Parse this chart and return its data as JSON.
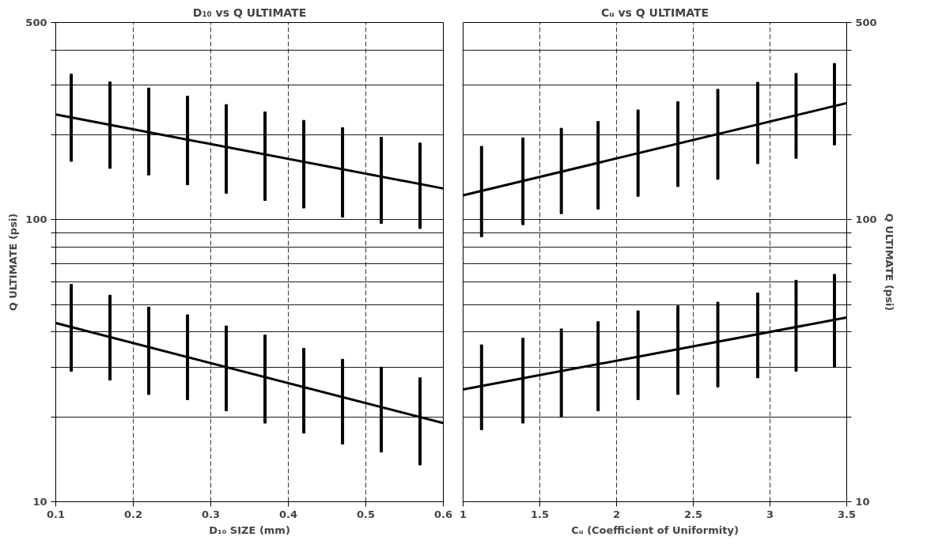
{
  "chart_data": [
    {
      "type": "bar",
      "title": "D₁₀ vs Q ULTIMATE",
      "xlabel": "D₁₀ SIZE (mm)",
      "ylabel": "Q ULTIMATE (psi)",
      "log": "y",
      "grid": true,
      "xlim": [
        0.1,
        0.6
      ],
      "xticks": [
        0.1,
        0.2,
        0.3,
        0.4,
        0.5,
        0.6
      ],
      "ylim": [
        10,
        500
      ],
      "yticks": [
        10,
        {
          "value": 20,
          "label": null
        },
        {
          "value": 30,
          "label": null
        },
        {
          "value": 40,
          "label": null
        },
        {
          "value": 50,
          "label": null
        },
        {
          "value": 60,
          "label": null
        },
        {
          "value": 70,
          "label": null
        },
        {
          "value": 80,
          "label": null
        },
        {
          "value": 90,
          "label": null
        },
        100,
        {
          "value": 200,
          "label": null
        },
        {
          "value": 300,
          "label": null
        },
        {
          "value": 400,
          "label": null
        },
        500
      ],
      "series": [
        {
          "color": "#000000",
          "x": [
            0.12,
            0.17,
            0.22,
            0.27,
            0.32,
            0.37,
            0.42,
            0.47,
            0.52,
            0.57
          ],
          "base": [
            161,
            152,
            144,
            133,
            124,
            117,
            110,
            102,
            97,
            93
          ],
          "values": [
            167,
            156,
            149,
            141,
            132,
            124,
            115,
            110,
            99,
            94
          ]
        },
        {
          "color": "#000000",
          "x": [
            0.12,
            0.17,
            0.22,
            0.27,
            0.32,
            0.37,
            0.42,
            0.47,
            0.52,
            0.57
          ],
          "base": [
            29,
            27,
            24,
            23,
            21,
            19,
            17.5,
            16,
            15,
            13.5
          ],
          "values": [
            30,
            27,
            25,
            23,
            21,
            20,
            17.5,
            16,
            15,
            14
          ]
        },
        {
          "type": "line",
          "color": "#000000",
          "x": [
            0.1,
            0.6
          ],
          "values": [
            236,
            129
          ]
        },
        {
          "type": "line",
          "color": "#000000",
          "x": [
            0.1,
            0.6
          ],
          "values": [
            43,
            19
          ]
        }
      ]
    },
    {
      "type": "bar",
      "title": "Cᵤ vs Q ULTIMATE",
      "xlabel": "Cᵤ (Coefficient of Uniformity)",
      "y2label": "Q ULTIMATE (psi)",
      "log": "y2",
      "grid": true,
      "xlim": [
        1,
        3.5
      ],
      "xticks": [
        1,
        1.5,
        2,
        2.5,
        3,
        3.5
      ],
      "y2lim": [
        10,
        500
      ],
      "y2ticks": [
        10,
        {
          "value": 20,
          "label": null
        },
        {
          "value": 30,
          "label": null
        },
        {
          "value": 40,
          "label": null
        },
        {
          "value": 50,
          "label": null
        },
        {
          "value": 60,
          "label": null
        },
        {
          "value": 70,
          "label": null
        },
        {
          "value": 80,
          "label": null
        },
        {
          "value": 90,
          "label": null
        },
        100,
        {
          "value": 200,
          "label": null
        },
        {
          "value": 300,
          "label": null
        },
        {
          "value": 400,
          "label": null
        },
        500
      ],
      "series": [
        {
          "axis": "y2",
          "color": "#000000",
          "x": [
            1.12,
            1.39,
            1.64,
            1.88,
            2.14,
            2.4,
            2.66,
            2.92,
            3.17,
            3.42
          ],
          "base": [
            87,
            96,
            105,
            109,
            121,
            131,
            139,
            158,
            165,
            184
          ],
          "values": [
            95,
            99,
            106,
            114,
            124,
            131,
            151,
            149,
            165,
            174
          ]
        },
        {
          "axis": "y2",
          "color": "#000000",
          "x": [
            1.12,
            1.39,
            1.64,
            1.88,
            2.14,
            2.4,
            2.66,
            2.92,
            3.17,
            3.42
          ],
          "base": [
            18,
            19,
            20,
            21,
            23,
            24,
            25.5,
            27.5,
            29,
            30
          ],
          "values": [
            18,
            19,
            21,
            22.5,
            24.5,
            25.5,
            25.5,
            27.5,
            32,
            34
          ]
        },
        {
          "type": "line",
          "axis": "y2",
          "color": "#000000",
          "x": [
            1,
            3.5
          ],
          "values": [
            122,
            259
          ]
        },
        {
          "type": "line",
          "axis": "y2",
          "color": "#000000",
          "x": [
            1,
            3.5
          ],
          "values": [
            25,
            45
          ]
        }
      ]
    }
  ]
}
